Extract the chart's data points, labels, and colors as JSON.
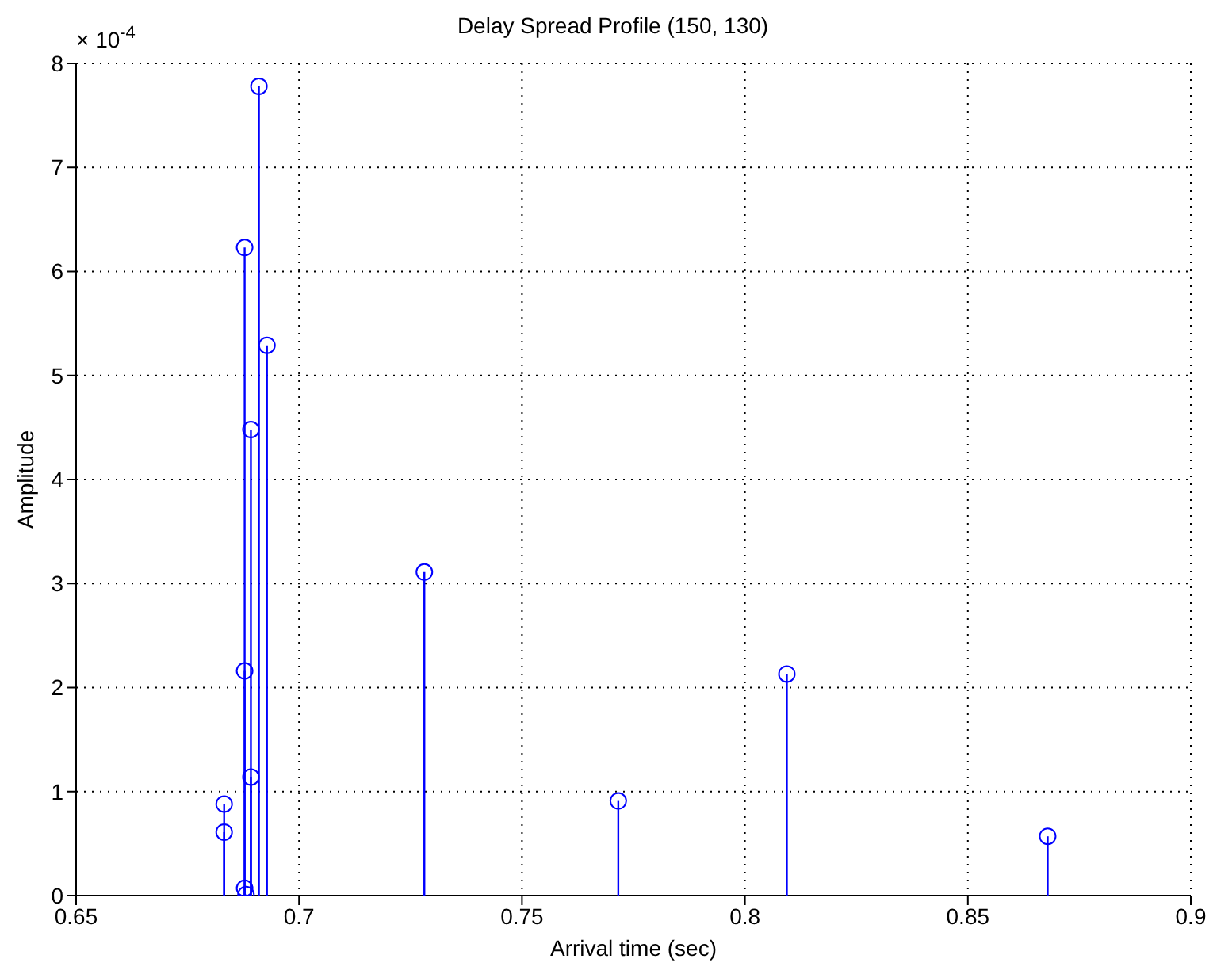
{
  "chart_data": {
    "type": "lollipop",
    "title": "Delay Spread Profile (150, 130)",
    "xlabel": "Arrival time (sec)",
    "ylabel": "Amplitude",
    "annotations": [
      "× 10$^{-4}$"
    ],
    "x": [
      0.6832,
      0.6832,
      0.6878,
      0.6878,
      0.6878,
      0.6881,
      0.6892,
      0.6892,
      0.691,
      0.6928,
      0.7281,
      0.7716,
      0.8094,
      0.8679
    ],
    "values": [
      0.88,
      0.61,
      6.23,
      2.16,
      0.07,
      0.01,
      4.48,
      1.14,
      7.78,
      5.29,
      3.11,
      0.91,
      2.13,
      0.57
    ],
    "color": "#0000ff",
    "marker": "circle",
    "line_style": "solid",
    "grid": true,
    "xlim": [
      0.65,
      0.9
    ],
    "xticks": [
      0.65,
      0.7,
      0.75,
      0.8,
      0.85,
      0.9
    ],
    "ylim": [
      0,
      8
    ],
    "yticks": [
      0,
      1,
      2,
      3,
      4,
      5,
      6,
      7,
      8
    ]
  }
}
